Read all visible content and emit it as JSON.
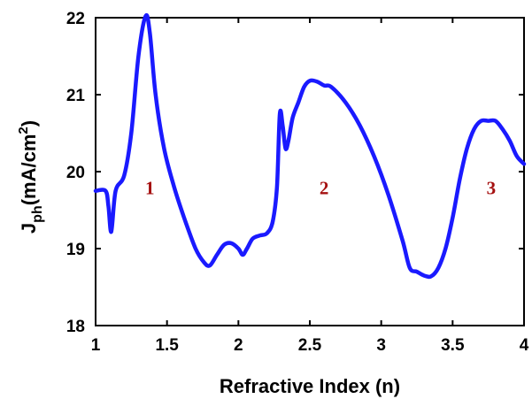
{
  "chart_data": {
    "type": "line",
    "xlabel": "Refractive Index (n)",
    "ylabel": {
      "main": "J",
      "sub": "ph",
      "unit_pre": "(mA/cm",
      "sup": "2",
      "unit_post": ")"
    },
    "xlim": [
      1,
      4
    ],
    "ylim": [
      18,
      22
    ],
    "xticks": [
      "1",
      "1.5",
      "2",
      "2.5",
      "3",
      "3.5",
      "4"
    ],
    "yticks": [
      "18",
      "19",
      "20",
      "21",
      "22"
    ],
    "grid": false,
    "series": [
      {
        "color": "#1a1aff",
        "x": [
          1.0,
          1.07,
          1.09,
          1.11,
          1.14,
          1.2,
          1.25,
          1.3,
          1.35,
          1.38,
          1.42,
          1.48,
          1.55,
          1.62,
          1.7,
          1.76,
          1.8,
          1.85,
          1.9,
          1.95,
          2.0,
          2.03,
          2.06,
          2.1,
          2.15,
          2.2,
          2.24,
          2.27,
          2.29,
          2.31,
          2.33,
          2.35,
          2.38,
          2.42,
          2.46,
          2.5,
          2.55,
          2.6,
          2.65,
          2.75,
          2.85,
          2.95,
          3.05,
          3.15,
          3.2,
          3.25,
          3.3,
          3.35,
          3.4,
          3.45,
          3.5,
          3.55,
          3.6,
          3.65,
          3.7,
          3.75,
          3.8,
          3.85,
          3.9,
          3.95,
          4.0
        ],
        "y": [
          19.75,
          19.75,
          19.55,
          19.22,
          19.75,
          19.95,
          20.5,
          21.5,
          22.02,
          21.8,
          21.0,
          20.3,
          19.8,
          19.4,
          19.0,
          18.82,
          18.78,
          18.92,
          19.05,
          19.07,
          19.0,
          18.92,
          19.0,
          19.13,
          19.17,
          19.2,
          19.35,
          19.8,
          20.75,
          20.6,
          20.3,
          20.4,
          20.7,
          20.9,
          21.1,
          21.18,
          21.17,
          21.12,
          21.1,
          20.9,
          20.6,
          20.2,
          19.7,
          19.1,
          18.75,
          18.7,
          18.65,
          18.64,
          18.75,
          19.0,
          19.4,
          19.9,
          20.3,
          20.55,
          20.66,
          20.66,
          20.66,
          20.55,
          20.4,
          20.2,
          20.1
        ]
      }
    ],
    "annotations": [
      {
        "text": "1",
        "x": 1.38,
        "y": 19.8,
        "color": "#a51010"
      },
      {
        "text": "2",
        "x": 2.6,
        "y": 19.8,
        "color": "#a51010"
      },
      {
        "text": "3",
        "x": 3.77,
        "y": 19.8,
        "color": "#a51010"
      }
    ]
  }
}
